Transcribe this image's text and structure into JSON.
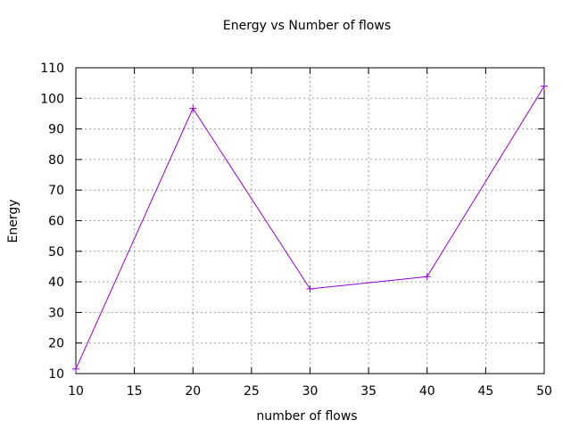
{
  "chart_data": {
    "type": "line",
    "title": "Energy vs Number of flows",
    "xlabel": "number of flows",
    "ylabel": "Energy",
    "xlim": [
      10,
      50
    ],
    "ylim": [
      10,
      110
    ],
    "xticks": [
      10,
      15,
      20,
      25,
      30,
      35,
      40,
      45,
      50
    ],
    "yticks": [
      10,
      20,
      30,
      40,
      50,
      60,
      70,
      80,
      90,
      100,
      110
    ],
    "grid": true,
    "legend": "none",
    "series": [
      {
        "color": "#9400d3",
        "marker": "plus",
        "x": [
          10,
          20,
          30,
          40,
          50
        ],
        "y": [
          11.5,
          96.7,
          37.7,
          41.7,
          104.0
        ]
      }
    ]
  }
}
